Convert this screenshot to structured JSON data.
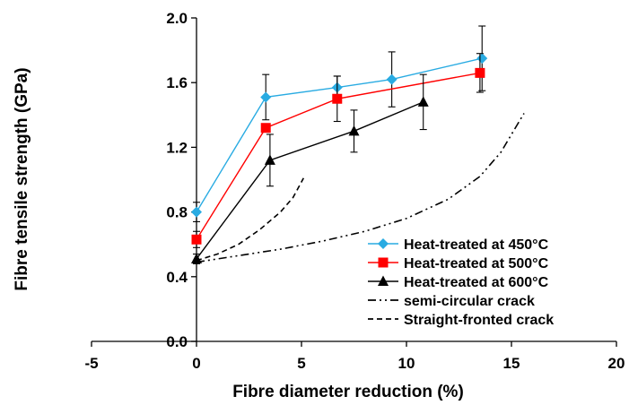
{
  "chart_data": {
    "type": "line",
    "xlabel": "Fibre diameter reduction (%)",
    "ylabel": "Fibre tensile strength  (GPa)",
    "xlim": [
      -5,
      20
    ],
    "ylim": [
      0.0,
      2.0
    ],
    "xticks": [
      -5,
      0,
      5,
      10,
      15,
      20
    ],
    "yticks": [
      0.0,
      0.4,
      0.8,
      1.2,
      1.6,
      2.0
    ],
    "xtick_labels": [
      "-5",
      "0",
      "5",
      "10",
      "15",
      "20"
    ],
    "ytick_labels": [
      "0.0",
      "0.4",
      "0.8",
      "1.2",
      "1.6",
      "2.0"
    ],
    "grid": false,
    "legend_position": "bottom-right",
    "series": [
      {
        "name": "Heat-treated at 450°C",
        "color": "#29abe2",
        "marker": "diamond",
        "line_style": "solid",
        "x": [
          0,
          3.3,
          6.7,
          9.3,
          13.6
        ],
        "y": [
          0.8,
          1.51,
          1.57,
          1.62,
          1.75
        ],
        "err": [
          0.06,
          0.14,
          0.07,
          0.17,
          0.2
        ]
      },
      {
        "name": "Heat-treated at 500°C",
        "color": "#ff0000",
        "marker": "square",
        "line_style": "solid",
        "x": [
          0,
          3.3,
          6.7,
          13.5
        ],
        "y": [
          0.63,
          1.32,
          1.5,
          1.66
        ],
        "err": [
          0.05,
          0.0,
          0.14,
          0.12
        ]
      },
      {
        "name": "Heat-treated at 600°C",
        "color": "#000000",
        "marker": "triangle",
        "line_style": "solid",
        "x": [
          0,
          3.5,
          7.5,
          10.8
        ],
        "y": [
          0.51,
          1.12,
          1.3,
          1.48
        ],
        "err": [
          0.03,
          0.16,
          0.13,
          0.17
        ]
      },
      {
        "name": "semi-circular crack",
        "color": "#000000",
        "marker": "none",
        "line_style": "dash-dot-dot",
        "x": [
          0,
          2,
          4,
          6,
          8,
          10,
          12,
          13.5,
          14.5,
          15.6
        ],
        "y": [
          0.49,
          0.53,
          0.57,
          0.62,
          0.68,
          0.76,
          0.88,
          1.02,
          1.17,
          1.41
        ]
      },
      {
        "name": "Straight-fronted crack",
        "color": "#000000",
        "marker": "none",
        "line_style": "dashed",
        "x": [
          0,
          1,
          2,
          3,
          4,
          4.6,
          5.1
        ],
        "y": [
          0.5,
          0.54,
          0.6,
          0.69,
          0.8,
          0.89,
          1.01
        ]
      }
    ]
  }
}
